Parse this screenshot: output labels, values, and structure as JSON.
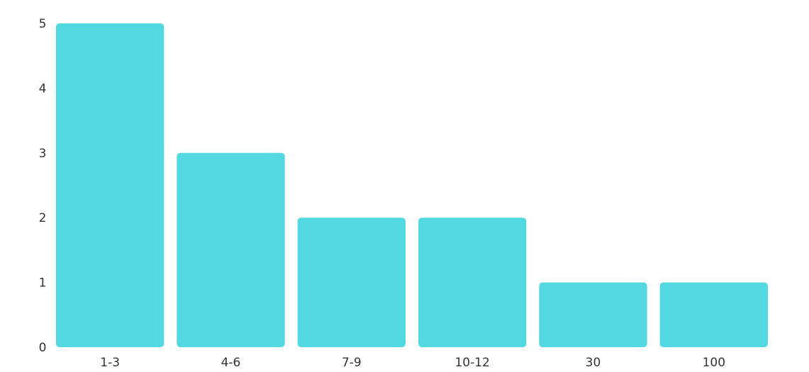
{
  "chart_data": {
    "type": "bar",
    "categories": [
      "1-3",
      "4-6",
      "7-9",
      "10-12",
      "30",
      "100"
    ],
    "values": [
      5,
      3,
      2,
      2,
      1,
      1
    ],
    "yticks": [
      0,
      1,
      2,
      3,
      4,
      5
    ],
    "ylim": [
      0,
      5
    ],
    "grid": false,
    "legend": "none",
    "bar_color": "#52d8e0"
  }
}
